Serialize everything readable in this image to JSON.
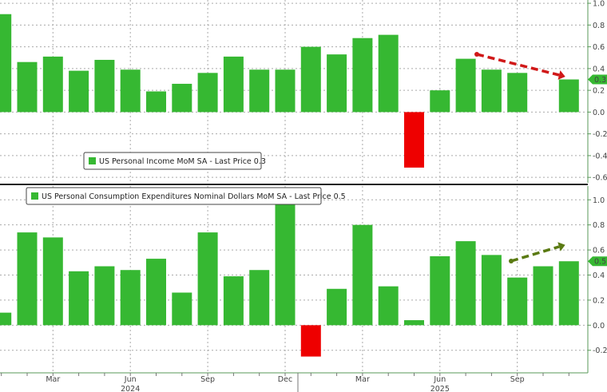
{
  "chart_data": [
    {
      "type": "bar",
      "legend": "US Personal Income MoM SA - Last Price 0.3",
      "legend_placement": "bottom-left",
      "last_price_label": "0.3",
      "categories": [
        "Jan 2024",
        "Feb 2024",
        "Mar 2024",
        "Apr 2024",
        "May 2024",
        "Jun 2024",
        "Jul 2024",
        "Aug 2024",
        "Sep 2024",
        "Oct 2024",
        "Nov 2024",
        "Dec 2024",
        "Jan 2025",
        "Feb 2025",
        "Mar 2025",
        "Apr 2025",
        "May 2025",
        "Jun 2025",
        "Jul 2025",
        "Aug 2025",
        "Sep 2025",
        "Oct 2025",
        "Nov 2025"
      ],
      "values": [
        0.9,
        0.46,
        0.51,
        0.38,
        0.48,
        0.39,
        0.19,
        0.26,
        0.36,
        0.51,
        0.39,
        0.39,
        0.6,
        0.53,
        0.68,
        0.71,
        -0.51,
        0.2,
        0.49,
        0.39,
        0.36,
        null,
        0.3
      ],
      "ylim": [
        -0.65,
        1.03
      ],
      "yticks": [
        "1.0",
        "0.8",
        "0.6",
        "0.4",
        "0.2",
        "0.0",
        "-0.2",
        "-0.4",
        "-0.6"
      ],
      "grid": true,
      "colors": {
        "positive": "#36b832",
        "negative": "#ee0000",
        "trend_arrow": "#d01818"
      },
      "annotation": "dashed red arrow trending down from Jul 2025 to Nov 2025"
    },
    {
      "type": "bar",
      "legend": "US Personal Consumption Expenditures Nominal Dollars MoM SA - Last Price 0.5",
      "legend_placement": "top-left",
      "last_price_label": "0.5",
      "categories": [
        "Jan 2024",
        "Feb 2024",
        "Mar 2024",
        "Apr 2024",
        "May 2024",
        "Jun 2024",
        "Jul 2024",
        "Aug 2024",
        "Sep 2024",
        "Oct 2024",
        "Nov 2024",
        "Dec 2024",
        "Jan 2025",
        "Feb 2025",
        "Mar 2025",
        "Apr 2025",
        "May 2025",
        "Jun 2025",
        "Jul 2025",
        "Aug 2025",
        "Sep 2025",
        "Oct 2025",
        "Nov 2025"
      ],
      "values": [
        0.1,
        0.74,
        0.7,
        0.43,
        0.47,
        0.44,
        0.53,
        0.26,
        0.74,
        0.39,
        0.44,
        0.97,
        -0.25,
        0.29,
        0.8,
        0.31,
        0.04,
        0.55,
        0.67,
        0.56,
        0.38,
        0.47,
        0.51
      ],
      "ylim": [
        -0.38,
        1.11
      ],
      "yticks": [
        "1.0",
        "0.8",
        "0.6",
        "0.4",
        "0.2",
        "0.0",
        "-0.2"
      ],
      "grid": true,
      "colors": {
        "positive": "#36b832",
        "negative": "#ee0000",
        "trend_arrow": "#5a7a12"
      },
      "annotation": "dashed olive arrow trending up from Sep 2025 to Nov 2025",
      "xtick_labels": [
        "Mar",
        "Jun",
        "Sep",
        "Dec",
        "Mar",
        "Jun",
        "Sep"
      ],
      "year_labels": [
        "2024",
        "2025"
      ]
    }
  ]
}
